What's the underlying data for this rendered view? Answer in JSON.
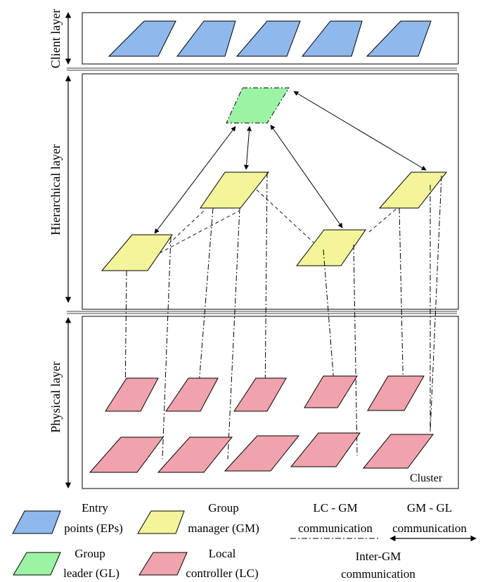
{
  "layers": {
    "client": "Client layer",
    "hierarchical": "Hierarchical layer",
    "physical": "Physical layer"
  },
  "cluster_label": "Cluster",
  "legend": {
    "ep": [
      "Entry",
      "points (EPs)"
    ],
    "gl": [
      "Group",
      "leader (GL)"
    ],
    "gm": [
      "Group",
      "manager (GM)"
    ],
    "lc": [
      "Local",
      "controller (LC)"
    ],
    "lc_gm": [
      "LC - GM",
      "communication"
    ],
    "gm_gl": [
      "GM - GL",
      "communication"
    ],
    "inter_gm": [
      "Inter-GM",
      "communication"
    ]
  },
  "colors": {
    "ep": "#8fb8ec",
    "gl": "#9af4a4",
    "gm": "#f4f49a",
    "lc": "#f0a3ac"
  }
}
